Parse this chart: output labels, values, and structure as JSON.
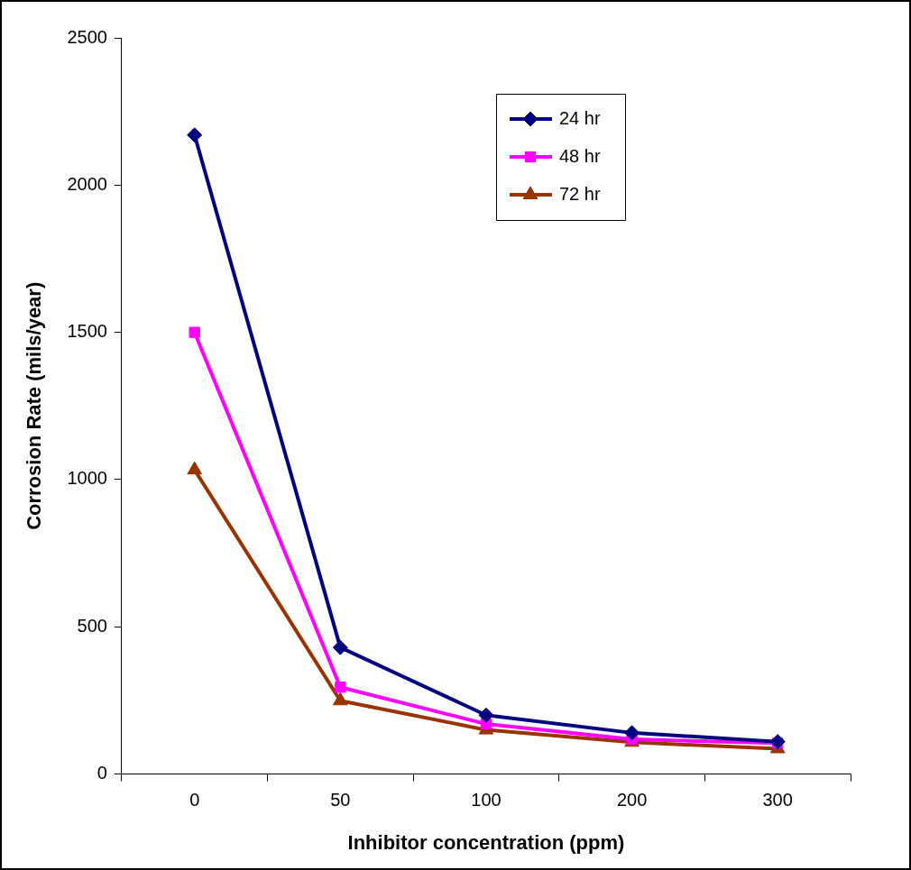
{
  "chart_data": {
    "type": "line",
    "xlabel": "Inhibitor concentration (ppm)",
    "ylabel": "Corrosion Rate (mils/year)",
    "categories": [
      "0",
      "50",
      "100",
      "200",
      "300"
    ],
    "series": [
      {
        "name": "24 hr",
        "color": "#000080",
        "marker": "diamond",
        "values": [
          2170,
          430,
          200,
          140,
          110
        ]
      },
      {
        "name": "48 hr",
        "color": "#ff00ff",
        "marker": "square",
        "values": [
          1500,
          295,
          170,
          118,
          105
        ]
      },
      {
        "name": "72 hr",
        "color": "#993300",
        "marker": "triangle",
        "values": [
          1033,
          249,
          150,
          108,
          86
        ]
      }
    ],
    "ylim": [
      0,
      2500
    ],
    "yticks": [
      0,
      500,
      1000,
      1500,
      2000,
      2500
    ],
    "grid": false,
    "legend": "top right",
    "line_style": "solid"
  }
}
